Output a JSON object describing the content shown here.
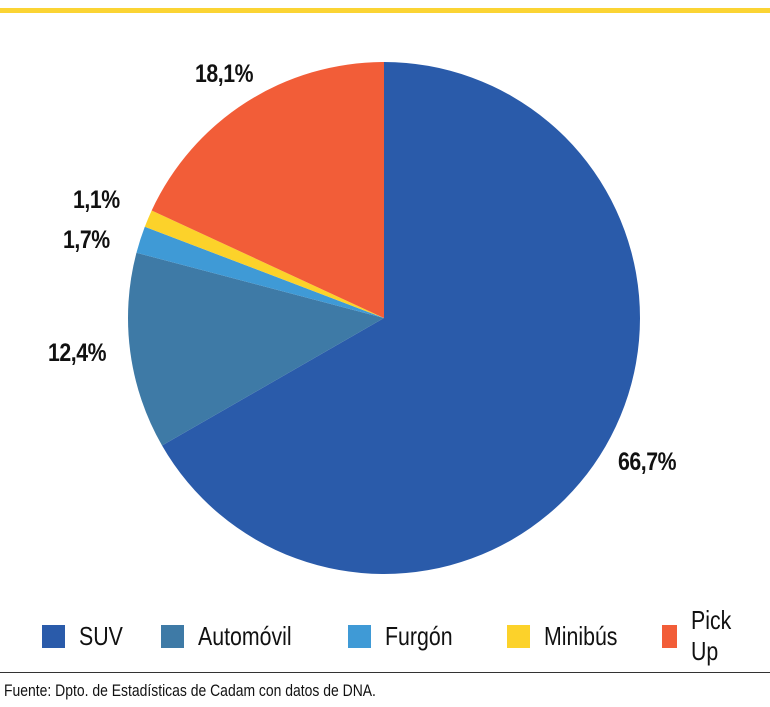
{
  "chart_data": {
    "type": "pie",
    "title": "",
    "start_angle": "12 o'clock, clockwise",
    "categories": [
      "SUV",
      "Automóvil",
      "Furgón",
      "Minibús",
      "Pick Up"
    ],
    "values": [
      66.7,
      12.4,
      1.7,
      1.1,
      18.1
    ],
    "value_labels": [
      "66,7%",
      "12,4%",
      "1,7%",
      "1,1%",
      "18,1%"
    ],
    "colors": [
      "#2A5BAA",
      "#3E7AA6",
      "#3F9AD6",
      "#FCD22A",
      "#F25D38"
    ],
    "legend_position": "bottom",
    "unit": "%"
  },
  "legend": [
    {
      "label": "SUV",
      "color": "#2A5BAA"
    },
    {
      "label": "Automóvil",
      "color": "#3E7AA6"
    },
    {
      "label": "Furgón",
      "color": "#3F9AD6"
    },
    {
      "label": "Minibús",
      "color": "#FCD22A"
    },
    {
      "label": "Pick Up",
      "color": "#F25D38"
    }
  ],
  "labels": {
    "suv": "66,7%",
    "automovil": "12,4%",
    "furgon": "1,7%",
    "minibus": "1,1%",
    "pickup": "18,1%"
  },
  "source": "Fuente: Dpto. de Estadísticas de Cadam con datos de DNA.",
  "accent_color": "#FBD434"
}
